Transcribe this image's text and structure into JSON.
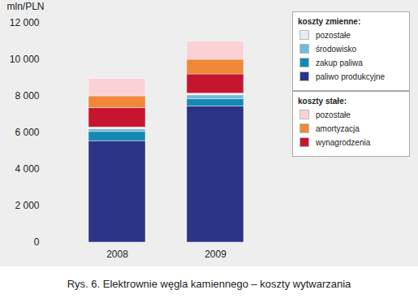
{
  "chart_data": {
    "type": "bar",
    "stacked": true,
    "caption": "Rys. 6. Elektrownie węgla kamiennego – koszty wytwarzania",
    "y_label": "mln/PLN",
    "categories": [
      "2008",
      "2009"
    ],
    "series": [
      {
        "name": "paliwo produkcyjne",
        "group": "koszty zmienne:",
        "color": "#2b3487",
        "values": [
          5550,
          7450
        ]
      },
      {
        "name": "zakup paliwa",
        "group": "koszty zmienne:",
        "color": "#1488b5",
        "values": [
          500,
          400
        ]
      },
      {
        "name": "środowisko",
        "group": "koszty zmienne:",
        "color": "#72bbd8",
        "values": [
          150,
          200
        ]
      },
      {
        "name": "pozostałe",
        "group": "koszty zmienne:",
        "color": "#e4edf4",
        "values": [
          100,
          100
        ]
      },
      {
        "name": "wynagrodzenia",
        "group": "koszty stałe:",
        "color": "#c8152f",
        "values": [
          1050,
          1050
        ]
      },
      {
        "name": "amortyzacja",
        "group": "koszty stałe:",
        "color": "#f0883a",
        "values": [
          650,
          800
        ]
      },
      {
        "name": "pozostałe",
        "group": "koszty stałe:",
        "color": "#fbd1d6",
        "values": [
          950,
          1000
        ]
      }
    ],
    "ylim": [
      0,
      12000
    ],
    "yticks": [
      0,
      {
        "value": 2000,
        "label": "2 000"
      },
      {
        "value": 4000,
        "label": "4 000"
      },
      {
        "value": 6000,
        "label": "6 000"
      },
      {
        "value": 8000,
        "label": "8 000"
      },
      {
        "value": 10000,
        "label": "10 000"
      },
      {
        "value": 12000,
        "label": "12 000"
      }
    ],
    "grid": false,
    "legend": "right"
  }
}
